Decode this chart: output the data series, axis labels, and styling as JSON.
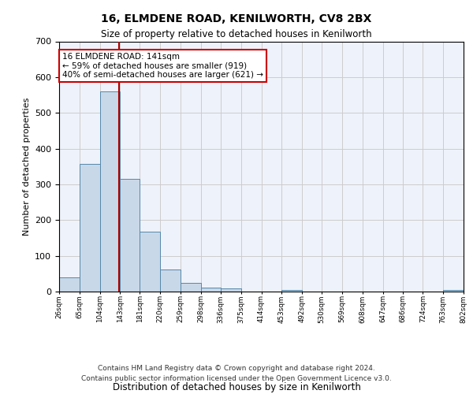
{
  "title1": "16, ELMDENE ROAD, KENILWORTH, CV8 2BX",
  "title2": "Size of property relative to detached houses in Kenilworth",
  "xlabel": "Distribution of detached houses by size in Kenilworth",
  "ylabel": "Number of detached properties",
  "footer1": "Contains HM Land Registry data © Crown copyright and database right 2024.",
  "footer2": "Contains public sector information licensed under the Open Government Licence v3.0.",
  "annotation_line1": "16 ELMDENE ROAD: 141sqm",
  "annotation_line2": "← 59% of detached houses are smaller (919)",
  "annotation_line3": "40% of semi-detached houses are larger (621) →",
  "property_size": 141,
  "bin_edges": [
    26,
    65,
    104,
    143,
    181,
    220,
    259,
    298,
    336,
    375,
    414,
    453,
    492,
    530,
    569,
    608,
    647,
    686,
    724,
    763,
    802
  ],
  "bar_heights": [
    40,
    357,
    560,
    315,
    168,
    62,
    24,
    11,
    8,
    0,
    0,
    5,
    0,
    0,
    0,
    0,
    0,
    0,
    0,
    5
  ],
  "bar_color": "#c8d8e8",
  "bar_edge_color": "#5588aa",
  "vline_color": "#aa0000",
  "vline_x": 141,
  "ylim": [
    0,
    700
  ],
  "yticks": [
    0,
    100,
    200,
    300,
    400,
    500,
    600,
    700
  ],
  "bg_color": "#eef2fa",
  "grid_color": "#cccccc",
  "annotation_box_color": "#cc0000"
}
